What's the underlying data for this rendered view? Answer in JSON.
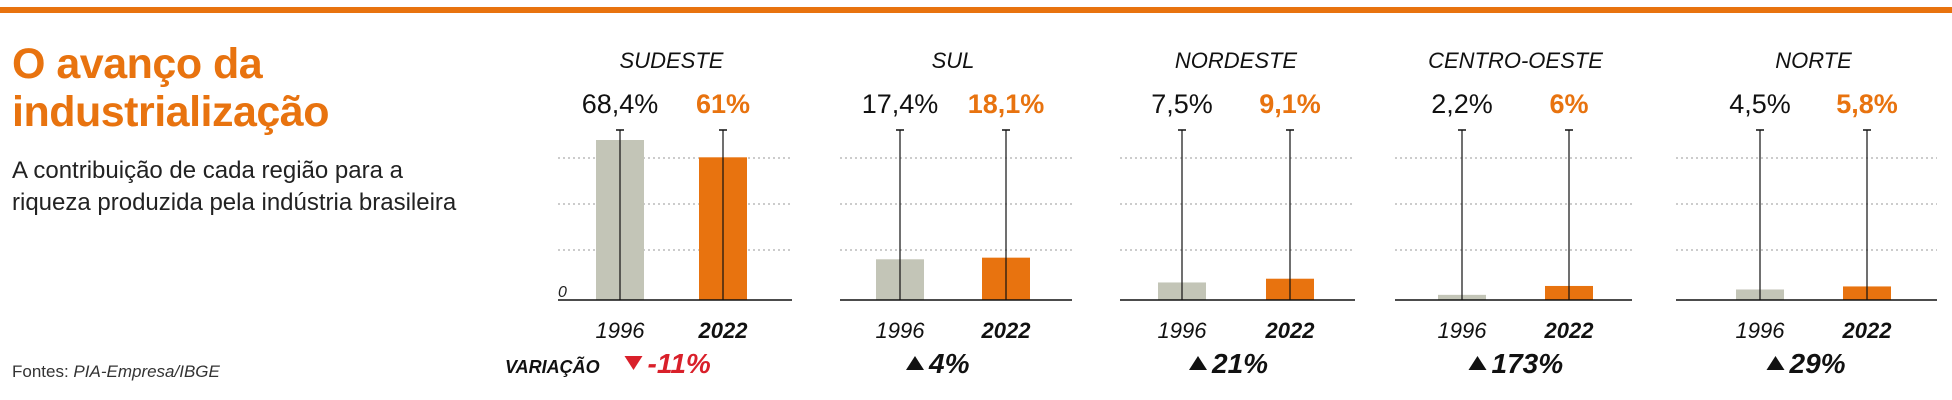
{
  "header": {
    "title": "O avanço da industrialização",
    "subtitle": "A contribuição de cada região para a riqueza produzida pela indústria brasileira",
    "source_prefix": "Fontes: ",
    "source_name": "PIA-Empresa/IBGE"
  },
  "colors": {
    "accent": "#e8730f",
    "gray_bar": "#c3c5b7",
    "decline": "#d9202a",
    "text": "#111111"
  },
  "chart_data": {
    "type": "bar",
    "years": [
      "1996",
      "2022"
    ],
    "zero_label": "0",
    "variation_label": "VARIAÇÃO",
    "ylim": [
      0,
      68.4
    ],
    "regions": [
      {
        "name": "SUDESTE",
        "values": [
          68.4,
          61
        ],
        "labels": [
          "68,4%",
          "61%"
        ],
        "variation": "-11%",
        "direction": "down"
      },
      {
        "name": "SUL",
        "values": [
          17.4,
          18.1
        ],
        "labels": [
          "17,4%",
          "18,1%"
        ],
        "variation": "4%",
        "direction": "up"
      },
      {
        "name": "NORDESTE",
        "values": [
          7.5,
          9.1
        ],
        "labels": [
          "7,5%",
          "9,1%"
        ],
        "variation": "21%",
        "direction": "up"
      },
      {
        "name": "CENTRO-OESTE",
        "values": [
          2.2,
          6
        ],
        "labels": [
          "2,2%",
          "6%"
        ],
        "variation": "173%",
        "direction": "up"
      },
      {
        "name": "NORTE",
        "values": [
          4.5,
          5.8
        ],
        "labels": [
          "4,5%",
          "5,8%"
        ],
        "variation": "29%",
        "direction": "up"
      }
    ]
  }
}
